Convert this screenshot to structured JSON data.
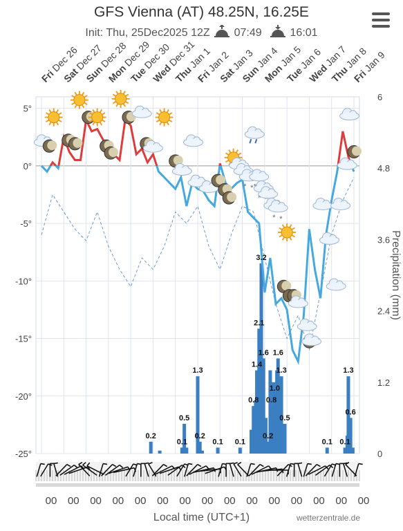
{
  "header": {
    "title": "GFS Vienna (AT) 48.25N, 16.25E",
    "init": "Init: Thu, 25Dec2025 12Z",
    "sunrise": "07:49",
    "sunset": "16:01"
  },
  "footer": {
    "xlabel": "Local time (UTC+1)",
    "credit": "wetterzentrale.de"
  },
  "chart_data": {
    "type": "line",
    "days": [
      {
        "wd": "Fri",
        "d": "Dec 26"
      },
      {
        "wd": "Sat",
        "d": "Dec 27"
      },
      {
        "wd": "Sun",
        "d": "Dec 28"
      },
      {
        "wd": "Mon",
        "d": "Dec 29"
      },
      {
        "wd": "Tue",
        "d": "Dec 30"
      },
      {
        "wd": "Wed",
        "d": "Dec 31"
      },
      {
        "wd": "Thu",
        "d": "Jan 1"
      },
      {
        "wd": "Fri",
        "d": "Jan 2"
      },
      {
        "wd": "Sat",
        "d": "Jan 3"
      },
      {
        "wd": "Sun",
        "d": "Jan 4"
      },
      {
        "wd": "Mon",
        "d": "Jan 5"
      },
      {
        "wd": "Tue",
        "d": "Jan 6"
      },
      {
        "wd": "Wed",
        "d": "Jan 7"
      },
      {
        "wd": "Thu",
        "d": "Jan 8"
      },
      {
        "wd": "Fri",
        "d": "Jan 9"
      }
    ],
    "hour_labels": [
      "00",
      "00",
      "00",
      "00",
      "00",
      "00",
      "00",
      "00",
      "00",
      "00",
      "00",
      "00",
      "00",
      "00",
      "00"
    ],
    "temp_ticks": [
      "5°",
      "0°",
      "-5°",
      "-10°",
      "-15°",
      "-20°",
      "-25°"
    ],
    "temp_tick_values": [
      5,
      0,
      -5,
      -10,
      -15,
      -20,
      -25
    ],
    "precip_ticks": [
      "6",
      "4.8",
      "3.6",
      "2.4",
      "1.2",
      "0"
    ],
    "precip_tick_values": [
      6,
      4.8,
      3.6,
      2.4,
      1.2,
      0
    ],
    "y2label": "Precipitation (mm)",
    "ylim": [
      -25,
      6
    ],
    "y2lim": [
      0,
      6
    ],
    "x_range_days": [
      0,
      14
    ],
    "temperature": {
      "x": [
        0,
        0.25,
        0.5,
        0.75,
        1,
        1.25,
        1.5,
        1.75,
        2,
        2.25,
        2.5,
        2.75,
        3,
        3.25,
        3.5,
        3.75,
        4,
        4.25,
        4.5,
        4.75,
        5,
        5.25,
        5.5,
        5.75,
        6,
        6.25,
        6.5,
        6.75,
        7,
        7.25,
        7.5,
        7.75,
        8,
        8.25,
        8.5,
        8.75,
        9,
        9.25,
        9.5,
        9.75,
        10,
        10.25,
        10.5,
        10.75,
        11,
        11.25,
        11.5,
        11.75,
        12,
        12.25,
        12.5,
        12.75,
        13,
        13.25,
        13.5,
        13.75,
        14
      ],
      "y": [
        0,
        -0.5,
        0.3,
        -0.2,
        2.5,
        1.2,
        0.5,
        0.5,
        4,
        3,
        3.2,
        2.3,
        1.5,
        1,
        0.5,
        4,
        3.5,
        1,
        1.5,
        0.3,
        1,
        -0.5,
        -1,
        -1.5,
        -2,
        -1,
        -3.5,
        -1.5,
        -2,
        -2.2,
        -3,
        -3.5,
        0.2,
        -1.5,
        -2,
        -1.5,
        -1.2,
        -4,
        -4.5,
        -5,
        -11,
        -8,
        -12,
        -11.5,
        -12.5,
        -16,
        -17,
        -13,
        -5.5,
        -9,
        -11.5,
        -6,
        -3,
        -0.5,
        3,
        0.8,
        -0.5
      ],
      "colors": {
        "above": "#e03a3a",
        "below": "#45a8e0"
      }
    },
    "dewpoint": {
      "x": [
        0,
        0.5,
        1,
        1.5,
        2,
        2.5,
        3,
        3.5,
        4,
        4.5,
        5,
        5.5,
        6,
        6.5,
        7,
        7.5,
        8,
        8.5,
        9,
        9.5,
        10,
        10.5,
        11,
        11.5,
        12,
        12.5,
        13,
        13.5,
        14
      ],
      "y": [
        -6,
        -2.5,
        -4,
        -5.5,
        -6.5,
        -4,
        -7,
        -9,
        -10.5,
        -8,
        -9,
        -7,
        -4,
        -5,
        -3.5,
        -7,
        -9,
        -6,
        -3.5,
        -4,
        -8,
        -12,
        -15,
        -13,
        -16,
        -11,
        -6,
        -3,
        -1
      ],
      "color": "#6a9bd1"
    },
    "precipitation": {
      "labels_shown": [
        {
          "x": 4.9,
          "v": 0.2,
          "label": "0.2"
        },
        {
          "x": 6.3,
          "v": 0.1,
          "label": "0.1"
        },
        {
          "x": 6.4,
          "v": 0.5,
          "label": "0.5"
        },
        {
          "x": 7.0,
          "v": 1.3,
          "label": "1.3"
        },
        {
          "x": 7.1,
          "v": 0.2,
          "label": "0.2"
        },
        {
          "x": 7.9,
          "v": 0.1,
          "label": "0.1"
        },
        {
          "x": 8.9,
          "v": 0.1,
          "label": "0.1"
        },
        {
          "x": 9.5,
          "v": 0.8,
          "label": "0.8"
        },
        {
          "x": 9.65,
          "v": 1.4,
          "label": "1.4"
        },
        {
          "x": 9.75,
          "v": 2.1,
          "label": "2.1"
        },
        {
          "x": 9.85,
          "v": 3.2,
          "label": "3.2"
        },
        {
          "x": 9.95,
          "v": 1.6,
          "label": "1.6"
        },
        {
          "x": 10.15,
          "v": 0.2,
          "label": "0.2"
        },
        {
          "x": 10.3,
          "v": 0.8,
          "label": "0.8"
        },
        {
          "x": 10.45,
          "v": 1.0,
          "label": "1.0"
        },
        {
          "x": 10.6,
          "v": 1.6,
          "label": "1.6"
        },
        {
          "x": 10.75,
          "v": 1.3,
          "label": "1.3"
        },
        {
          "x": 10.9,
          "v": 0.5,
          "label": "0.5"
        },
        {
          "x": 12.8,
          "v": 0.1,
          "label": "0.1"
        },
        {
          "x": 13.6,
          "v": 0.1,
          "label": "0.1"
        },
        {
          "x": 13.75,
          "v": 1.3,
          "label": "1.3"
        },
        {
          "x": 13.85,
          "v": 0.6,
          "label": "0.6"
        }
      ],
      "bars": [
        {
          "x": 4.9,
          "v": 0.2
        },
        {
          "x": 5.3,
          "v": 0.05
        },
        {
          "x": 6.3,
          "v": 0.1
        },
        {
          "x": 6.4,
          "v": 0.5
        },
        {
          "x": 6.5,
          "v": 0.1
        },
        {
          "x": 7.0,
          "v": 1.3
        },
        {
          "x": 7.1,
          "v": 0.2
        },
        {
          "x": 7.2,
          "v": 0.05
        },
        {
          "x": 7.9,
          "v": 0.1
        },
        {
          "x": 8.9,
          "v": 0.1
        },
        {
          "x": 9.4,
          "v": 0.4
        },
        {
          "x": 9.5,
          "v": 0.8
        },
        {
          "x": 9.6,
          "v": 0.9
        },
        {
          "x": 9.65,
          "v": 1.4
        },
        {
          "x": 9.75,
          "v": 2.1
        },
        {
          "x": 9.85,
          "v": 3.2
        },
        {
          "x": 9.95,
          "v": 1.6
        },
        {
          "x": 10.05,
          "v": 0.6
        },
        {
          "x": 10.15,
          "v": 0.2
        },
        {
          "x": 10.25,
          "v": 1.4
        },
        {
          "x": 10.3,
          "v": 0.8
        },
        {
          "x": 10.4,
          "v": 1.2
        },
        {
          "x": 10.45,
          "v": 1.0
        },
        {
          "x": 10.55,
          "v": 1.4
        },
        {
          "x": 10.6,
          "v": 1.6
        },
        {
          "x": 10.7,
          "v": 1.1
        },
        {
          "x": 10.75,
          "v": 1.3
        },
        {
          "x": 10.85,
          "v": 0.4
        },
        {
          "x": 10.9,
          "v": 0.5
        },
        {
          "x": 12.8,
          "v": 0.1
        },
        {
          "x": 13.6,
          "v": 0.1
        },
        {
          "x": 13.7,
          "v": 0.3
        },
        {
          "x": 13.75,
          "v": 1.3
        },
        {
          "x": 13.85,
          "v": 0.6
        },
        {
          "x": 13.95,
          "v": 0.1
        }
      ],
      "color": "#3b7ec2"
    },
    "weather_icons": [
      {
        "x": 0.1,
        "t": 1.5,
        "type": "cloud"
      },
      {
        "x": 0.35,
        "t": 1,
        "type": "night"
      },
      {
        "x": 0.55,
        "t": 3.5,
        "type": "sun"
      },
      {
        "x": 1.2,
        "t": 1.5,
        "type": "night"
      },
      {
        "x": 1.5,
        "t": 1.2,
        "type": "night"
      },
      {
        "x": 1.7,
        "t": 5,
        "type": "sun"
      },
      {
        "x": 2.1,
        "t": 3.5,
        "type": "night"
      },
      {
        "x": 2.5,
        "t": 3.5,
        "type": "sun"
      },
      {
        "x": 2.9,
        "t": 1,
        "type": "night"
      },
      {
        "x": 3.1,
        "t": 0.4,
        "type": "night"
      },
      {
        "x": 3.55,
        "t": 5.1,
        "type": "sun"
      },
      {
        "x": 3.9,
        "t": 3.5,
        "type": "night"
      },
      {
        "x": 4.5,
        "t": 4,
        "type": "cloud"
      },
      {
        "x": 4.7,
        "t": 1.2,
        "type": "night"
      },
      {
        "x": 5.0,
        "t": 1,
        "type": "cloud"
      },
      {
        "x": 5.5,
        "t": 3.5,
        "type": "sun"
      },
      {
        "x": 6.0,
        "t": -0.3,
        "type": "night"
      },
      {
        "x": 6.3,
        "t": -1,
        "type": "cloud"
      },
      {
        "x": 6.8,
        "t": 1.5,
        "type": "cloud"
      },
      {
        "x": 7.0,
        "t": -2,
        "type": "cloud"
      },
      {
        "x": 7.5,
        "t": -2.5,
        "type": "cloud"
      },
      {
        "x": 7.9,
        "t": -2,
        "type": "night"
      },
      {
        "x": 8.2,
        "t": -2.8,
        "type": "night"
      },
      {
        "x": 8.4,
        "t": -3.5,
        "type": "night"
      },
      {
        "x": 8.6,
        "t": 0,
        "type": "sun"
      },
      {
        "x": 8.85,
        "t": -0.5,
        "type": "cloud"
      },
      {
        "x": 9.05,
        "t": -1,
        "type": "cloud"
      },
      {
        "x": 9.3,
        "t": -1.5,
        "type": "snow"
      },
      {
        "x": 9.55,
        "t": 2.2,
        "type": "rain"
      },
      {
        "x": 9.75,
        "t": -1.5,
        "type": "snow"
      },
      {
        "x": 9.95,
        "t": -2.5,
        "type": "snow"
      },
      {
        "x": 10.15,
        "t": -3,
        "type": "cloud"
      },
      {
        "x": 10.4,
        "t": -4,
        "type": "cloud"
      },
      {
        "x": 10.6,
        "t": -4.2,
        "type": "snow"
      },
      {
        "x": 11.0,
        "t": -6.5,
        "type": "sun"
      },
      {
        "x": 10.85,
        "t": -11.2,
        "type": "night"
      },
      {
        "x": 11.1,
        "t": -12,
        "type": "night"
      },
      {
        "x": 11.3,
        "t": -12,
        "type": "night"
      },
      {
        "x": 11.5,
        "t": -12.5,
        "type": "cloud"
      },
      {
        "x": 11.9,
        "t": -14.5,
        "type": "cloud"
      },
      {
        "x": 12.0,
        "t": -16,
        "type": "night"
      },
      {
        "x": 12.1,
        "t": -15.8,
        "type": "cloud"
      },
      {
        "x": 12.6,
        "t": -4,
        "type": "cloud"
      },
      {
        "x": 12.9,
        "t": -7,
        "type": "cloud"
      },
      {
        "x": 13.2,
        "t": -11,
        "type": "cloud"
      },
      {
        "x": 13.4,
        "t": -4,
        "type": "cloud"
      },
      {
        "x": 13.7,
        "t": -0.5,
        "type": "cloud"
      },
      {
        "x": 13.8,
        "t": 3.8,
        "type": "cloud"
      },
      {
        "x": 14.0,
        "t": 0.5,
        "type": "night"
      }
    ],
    "wind_barbs_dir_deg": [
      100,
      110,
      90,
      80,
      120,
      130,
      140,
      150,
      60,
      50,
      40,
      100,
      120,
      130,
      150,
      160,
      110,
      100,
      90,
      80,
      70,
      120,
      140,
      150,
      130,
      110,
      100,
      120,
      140,
      160,
      170,
      150,
      100,
      90,
      80,
      70,
      60,
      100,
      120,
      140,
      160,
      170,
      180,
      120,
      100,
      90,
      80,
      100,
      120,
      140,
      130,
      110,
      100,
      90,
      80,
      60,
      100
    ],
    "grid": true
  }
}
